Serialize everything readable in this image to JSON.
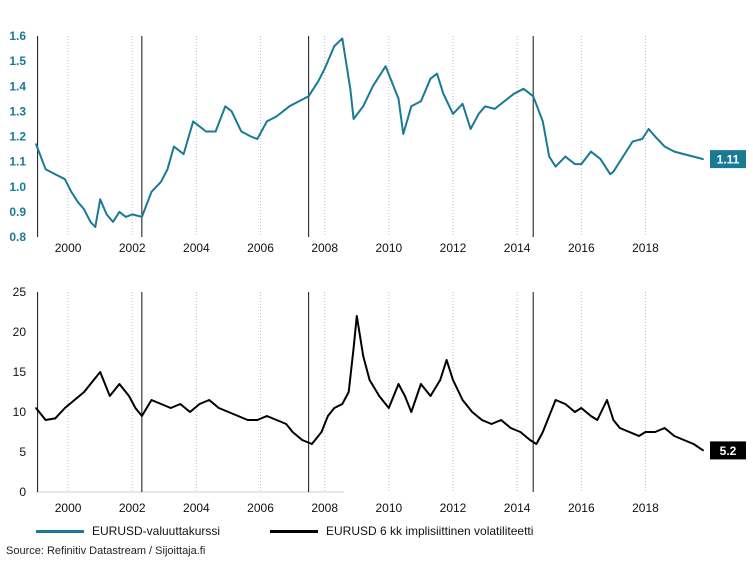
{
  "chart_data": [
    {
      "type": "line",
      "series": [
        {
          "name": "EURUSD-valuuttakurssi",
          "color": "#1a7a96",
          "x": [
            1999.0,
            1999.3,
            1999.6,
            1999.9,
            2000.1,
            2000.3,
            2000.5,
            2000.7,
            2000.85,
            2001.0,
            2001.2,
            2001.4,
            2001.6,
            2001.8,
            2002.0,
            2002.3,
            2002.6,
            2002.9,
            2003.1,
            2003.3,
            2003.6,
            2003.9,
            2004.0,
            2004.3,
            2004.6,
            2004.9,
            2005.1,
            2005.4,
            2005.7,
            2005.9,
            2006.2,
            2006.5,
            2006.9,
            2007.2,
            2007.5,
            2007.8,
            2008.0,
            2008.3,
            2008.55,
            2008.8,
            2008.9,
            2009.2,
            2009.5,
            2009.9,
            2010.3,
            2010.45,
            2010.7,
            2011.0,
            2011.3,
            2011.5,
            2011.7,
            2012.0,
            2012.3,
            2012.55,
            2012.8,
            2013.0,
            2013.3,
            2013.6,
            2013.9,
            2014.2,
            2014.5,
            2014.8,
            2015.0,
            2015.2,
            2015.5,
            2015.8,
            2016.0,
            2016.3,
            2016.6,
            2016.9,
            2017.0,
            2017.3,
            2017.6,
            2017.9,
            2018.1,
            2018.3,
            2018.6,
            2018.9,
            2019.2,
            2019.5,
            2019.8
          ],
          "values": [
            1.17,
            1.07,
            1.05,
            1.03,
            0.98,
            0.94,
            0.91,
            0.86,
            0.84,
            0.95,
            0.89,
            0.86,
            0.9,
            0.88,
            0.89,
            0.88,
            0.98,
            1.02,
            1.07,
            1.16,
            1.13,
            1.26,
            1.25,
            1.22,
            1.22,
            1.32,
            1.3,
            1.22,
            1.2,
            1.19,
            1.26,
            1.28,
            1.32,
            1.34,
            1.36,
            1.42,
            1.47,
            1.56,
            1.59,
            1.39,
            1.27,
            1.32,
            1.4,
            1.48,
            1.35,
            1.21,
            1.32,
            1.34,
            1.43,
            1.45,
            1.37,
            1.29,
            1.33,
            1.23,
            1.29,
            1.32,
            1.31,
            1.34,
            1.37,
            1.39,
            1.36,
            1.26,
            1.12,
            1.08,
            1.12,
            1.09,
            1.09,
            1.14,
            1.11,
            1.05,
            1.06,
            1.12,
            1.18,
            1.19,
            1.23,
            1.2,
            1.16,
            1.14,
            1.13,
            1.12,
            1.11
          ]
        }
      ],
      "end_label": "1.11",
      "y_ticks": [
        "0.8",
        "0.9",
        "1.0",
        "1.1",
        "1.2",
        "1.3",
        "1.4",
        "1.5",
        "1.6"
      ],
      "x_ticks": [
        "2000",
        "2002",
        "2004",
        "2006",
        "2008",
        "2010",
        "2012",
        "2014",
        "2016",
        "2018"
      ],
      "xlim": [
        1999.0,
        2019.95
      ],
      "ylim": [
        0.8,
        1.6
      ],
      "event_lines": [
        1999.05,
        2002.3,
        2007.5,
        2014.5
      ],
      "grid": "vertical dotted"
    },
    {
      "type": "line",
      "series": [
        {
          "name": "EURUSD 6 kk implisiittinen volatiliteetti",
          "color": "#000000",
          "x": [
            1999.0,
            1999.3,
            1999.6,
            1999.9,
            2000.2,
            2000.5,
            2000.8,
            2001.0,
            2001.3,
            2001.6,
            2001.9,
            2002.1,
            2002.3,
            2002.6,
            2002.9,
            2003.2,
            2003.5,
            2003.8,
            2004.1,
            2004.4,
            2004.7,
            2005.0,
            2005.3,
            2005.6,
            2005.9,
            2006.2,
            2006.5,
            2006.8,
            2007.0,
            2007.3,
            2007.6,
            2007.9,
            2008.1,
            2008.3,
            2008.55,
            2008.75,
            2008.9,
            2009.0,
            2009.2,
            2009.4,
            2009.7,
            2010.0,
            2010.3,
            2010.5,
            2010.7,
            2011.0,
            2011.3,
            2011.6,
            2011.8,
            2012.0,
            2012.3,
            2012.6,
            2012.9,
            2013.2,
            2013.5,
            2013.8,
            2014.1,
            2014.4,
            2014.6,
            2014.8,
            2015.0,
            2015.2,
            2015.5,
            2015.8,
            2016.0,
            2016.3,
            2016.5,
            2016.8,
            2017.0,
            2017.2,
            2017.5,
            2017.8,
            2018.0,
            2018.3,
            2018.6,
            2018.9,
            2019.2,
            2019.5,
            2019.8
          ],
          "values": [
            10.5,
            9.0,
            9.2,
            10.5,
            11.5,
            12.5,
            14.0,
            15.0,
            12.0,
            13.5,
            12.0,
            10.5,
            9.5,
            11.5,
            11.0,
            10.5,
            11.0,
            10.0,
            11.0,
            11.5,
            10.5,
            10.0,
            9.5,
            9.0,
            9.0,
            9.5,
            9.0,
            8.5,
            7.5,
            6.5,
            6.0,
            7.5,
            9.5,
            10.5,
            11.0,
            12.5,
            18.0,
            22.0,
            17.0,
            14.0,
            12.0,
            10.5,
            13.5,
            12.0,
            10.0,
            13.5,
            12.0,
            14.0,
            16.5,
            14.0,
            11.5,
            10.0,
            9.0,
            8.5,
            9.0,
            8.0,
            7.5,
            6.5,
            6.0,
            7.5,
            9.5,
            11.5,
            11.0,
            10.0,
            10.5,
            9.5,
            9.0,
            11.5,
            9.0,
            8.0,
            7.5,
            7.0,
            7.5,
            7.5,
            8.0,
            7.0,
            6.5,
            6.0,
            5.2
          ]
        }
      ],
      "end_label": "5.2",
      "y_ticks": [
        "0",
        "5",
        "10",
        "15",
        "20",
        "25"
      ],
      "x_ticks": [
        "2000",
        "2002",
        "2004",
        "2006",
        "2008",
        "2010",
        "2012",
        "2014",
        "2016",
        "2018"
      ],
      "xlim": [
        1999.0,
        2019.95
      ],
      "ylim": [
        0,
        25
      ],
      "event_lines": [
        1999.05,
        2002.3,
        2007.5,
        2014.5
      ],
      "grid": "vertical dotted"
    }
  ],
  "legend": [
    {
      "label": "EURUSD-valuuttakurssi",
      "color": "#1a7a96"
    },
    {
      "label": "EURUSD 6 kk implisiittinen volatiliteetti",
      "color": "#000000"
    }
  ],
  "source": "Source: Refinitiv Datastream / Sijoittaja.fi"
}
